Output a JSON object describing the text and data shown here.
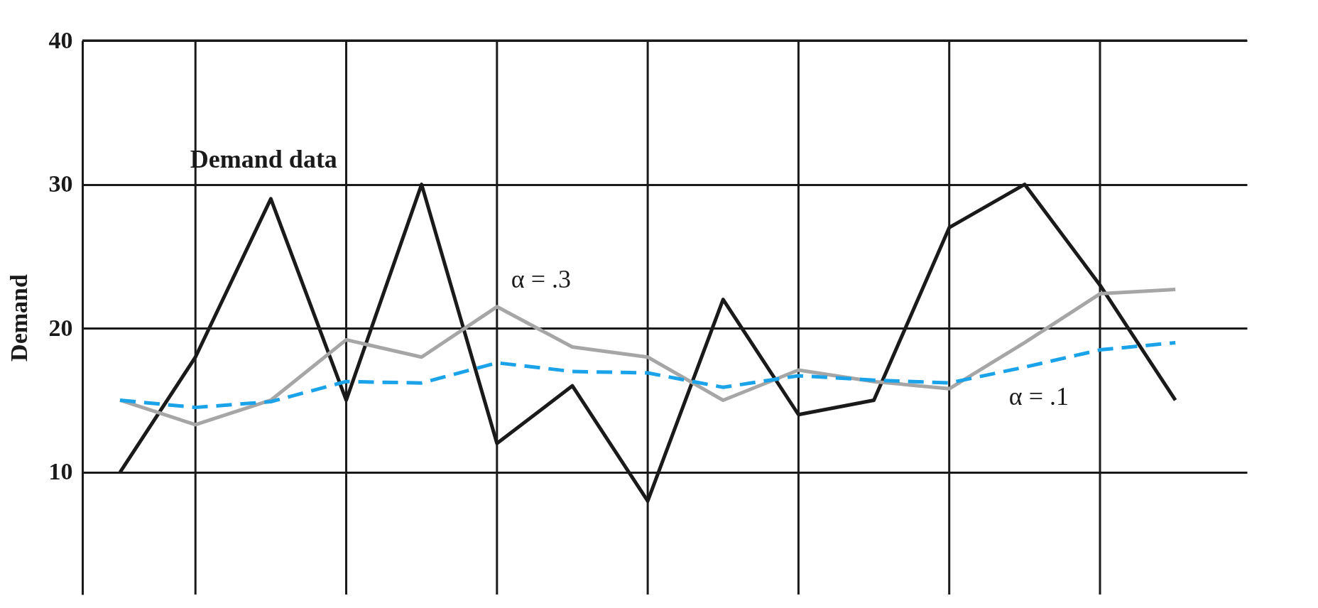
{
  "chart_data": {
    "type": "line",
    "ylabel": "Demand",
    "categories": [
      null,
      null,
      null,
      null,
      null,
      null,
      null,
      null,
      null,
      null,
      null,
      null,
      null,
      null,
      null
    ],
    "series": [
      {
        "name": "Demand data",
        "color": "#1a1a1a",
        "line_style": "solid",
        "values": [
          10,
          18,
          29,
          15,
          30,
          12,
          16,
          8,
          22,
          14,
          15,
          27,
          30,
          23,
          15
        ]
      },
      {
        "name": "α = .3",
        "color": "#a6a6a6",
        "line_style": "solid",
        "values": [
          15,
          13.3,
          15,
          19.2,
          18,
          21.5,
          18.7,
          18,
          15,
          17.1,
          16.3,
          15.8,
          19,
          22.4,
          22.7
        ]
      },
      {
        "name": "α = .1",
        "color": "#1aa3e8",
        "line_style": "dashed",
        "values": [
          15,
          14.5,
          14.9,
          16.3,
          16.2,
          17.6,
          17,
          16.9,
          15.9,
          16.7,
          16.4,
          16.2,
          17.3,
          18.5,
          19
        ]
      }
    ],
    "ylim": [
      1.5,
      40
    ],
    "yticks": [
      10,
      20,
      30,
      40
    ],
    "grid": true,
    "marker": "none"
  }
}
